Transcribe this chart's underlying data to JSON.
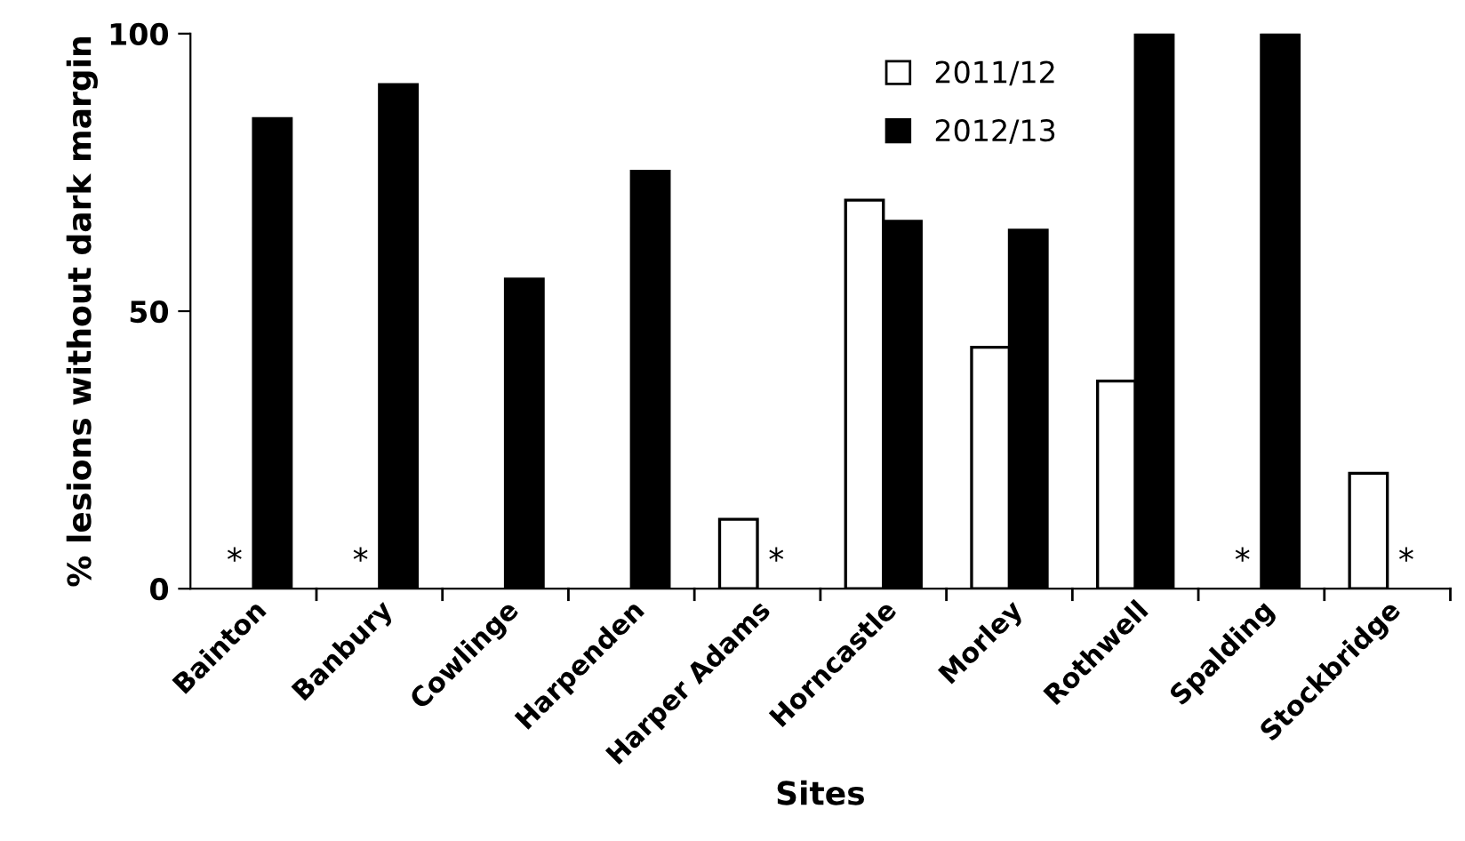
{
  "chart_data": {
    "type": "bar",
    "xlabel": "Sites",
    "ylabel": "% lesions without dark margin",
    "categories": [
      "Bainton",
      "Banbury",
      "Cowlinge",
      "Harpenden",
      "Harper Adams",
      "Horncastle",
      "Morley",
      "Rothwell",
      "Spalding",
      "Stockbridge"
    ],
    "series": [
      {
        "name": "2011/12",
        "color": "#ffffff",
        "values": [
          null,
          null,
          0,
          0,
          12.5,
          70,
          43.5,
          37.4,
          null,
          20.8
        ]
      },
      {
        "name": "2012/13",
        "color": "#000000",
        "values": [
          84.7,
          90.8,
          55.8,
          75.2,
          null,
          66.2,
          64.6,
          100,
          100,
          null
        ]
      }
    ],
    "ylim": [
      0,
      100
    ],
    "yticks": [
      0,
      50,
      100
    ],
    "grid": false,
    "legend": "top",
    "annotations": [
      {
        "text": "*",
        "x": "Bainton",
        "y": 0
      },
      {
        "text": "*",
        "x": "Banbury",
        "y": 0
      },
      {
        "text": "*",
        "x": "Harper Adams",
        "y": 0
      },
      {
        "text": "*",
        "x": "Spalding",
        "y": 0
      },
      {
        "text": "*",
        "x": "Stockbridge",
        "y": 0
      }
    ]
  }
}
